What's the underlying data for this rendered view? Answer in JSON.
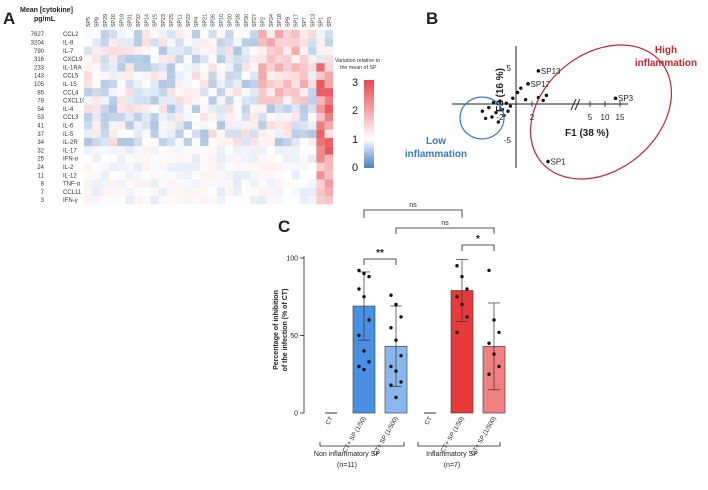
{
  "panels": {
    "a": "A",
    "b": "B",
    "c": "C"
  },
  "heatmap": {
    "mean_header_1": "Mean [cytokine]",
    "mean_header_2": "pg/mL",
    "columns": [
      "SP5",
      "SP8",
      "SP29",
      "SP16",
      "SP19",
      "SP31",
      "SP32",
      "SP14",
      "SP15",
      "SP23",
      "SP25",
      "SP11",
      "SP22",
      "SP4",
      "SP21",
      "SP26",
      "SP10",
      "SP20",
      "SP28",
      "SP30",
      "SP27",
      "SP2",
      "SP24",
      "SP18",
      "SP9",
      "SP17",
      "SP7",
      "SP13",
      "SP1",
      "SP3"
    ],
    "rows": [
      {
        "mean": "7627",
        "name": "CCL2"
      },
      {
        "mean": "3204",
        "name": "IL-8"
      },
      {
        "mean": "790",
        "name": "IL-7"
      },
      {
        "mean": "316",
        "name": "CXCL9"
      },
      {
        "mean": "233",
        "name": "IL-1RA"
      },
      {
        "mean": "143",
        "name": "CCL5"
      },
      {
        "mean": "105",
        "name": "IL-15"
      },
      {
        "mean": "85",
        "name": "CCL4"
      },
      {
        "mean": "78",
        "name": "CXCL10"
      },
      {
        "mean": "54",
        "name": "IL-4"
      },
      {
        "mean": "53",
        "name": "CCL3"
      },
      {
        "mean": "41",
        "name": "IL-6"
      },
      {
        "mean": "37",
        "name": "IL-5"
      },
      {
        "mean": "34",
        "name": "IL-2R"
      },
      {
        "mean": "32",
        "name": "IL-17"
      },
      {
        "mean": "25",
        "name": "IFN-α"
      },
      {
        "mean": "24",
        "name": "IL-2"
      },
      {
        "mean": "11",
        "name": "IL-12"
      },
      {
        "mean": "8",
        "name": "TNF-α"
      },
      {
        "mean": "7",
        "name": "CCL11"
      },
      {
        "mean": "3",
        "name": "IFN-γ"
      }
    ],
    "legend_title_1": "Variation relative to",
    "legend_title_2": "the mean of SP",
    "legend_ticks": [
      "3",
      "2",
      "1",
      "0"
    ],
    "low_color": "#4a7fc1",
    "mid_color": "#ffffff",
    "high_color": "#e8484d"
  },
  "pca": {
    "ylabel": "F2 (16 %)",
    "xlabel": "F1 (38 %)",
    "ytick_labels": [
      "5",
      "-5"
    ],
    "xtick_labels": [
      "-2",
      "2",
      "5",
      "10",
      "15"
    ],
    "labelled_points": [
      {
        "name": "SP13",
        "x": 2.8,
        "y": 4.6
      },
      {
        "name": "SP17",
        "x": 1.5,
        "y": 2.8
      },
      {
        "name": "SP3",
        "x": 13.5,
        "y": 0.8
      },
      {
        "name": "SP1",
        "x": 4.0,
        "y": -8.0
      }
    ],
    "high_label_1": "High",
    "high_label_2": "inflammation",
    "low_label_1": "Low",
    "low_label_2": "inflammation",
    "high_color": "#c0282d",
    "low_color": "#3a78c0"
  },
  "bars": {
    "ylabel_1": "Percentage of inhibition",
    "ylabel_2": "of the infection (% of CT)",
    "yticks": [
      "0",
      "50",
      "100"
    ],
    "chart_data": {
      "type": "bar",
      "ylabel": "Percentage of inhibition of the infection (% of CT)",
      "ylim": [
        0,
        100
      ],
      "categories": [
        "CT",
        "CT+ SP (1/50)",
        "CT+ SP (1/500)",
        "CT",
        "CT+ SP (1/50)",
        "CT+ SP (1/500)"
      ],
      "groups": [
        {
          "name": "Non inflammatory SP",
          "n": "(n=11)"
        },
        {
          "name": "Inflammatory SP",
          "n": "(n=7)"
        }
      ],
      "values": [
        0,
        69,
        43,
        0,
        79,
        43
      ],
      "errors": [
        0,
        22,
        26,
        0,
        20,
        28
      ],
      "colors": [
        "#4a90e2",
        "#4a90e2",
        "#8ab8ee",
        "#e83a3a",
        "#e83a3a",
        "#f28080"
      ],
      "points": [
        [],
        [
          92,
          90,
          88,
          80,
          75,
          60,
          50,
          40,
          33,
          30,
          28
        ],
        [
          76,
          70,
          62,
          55,
          47,
          37,
          30,
          27,
          20,
          18,
          10
        ],
        [],
        [
          95,
          88,
          80,
          75,
          70,
          62,
          52
        ],
        [
          92,
          60,
          52,
          45,
          38,
          30,
          25
        ]
      ],
      "annotations": [
        "ns",
        "ns",
        "**",
        "*"
      ]
    }
  }
}
